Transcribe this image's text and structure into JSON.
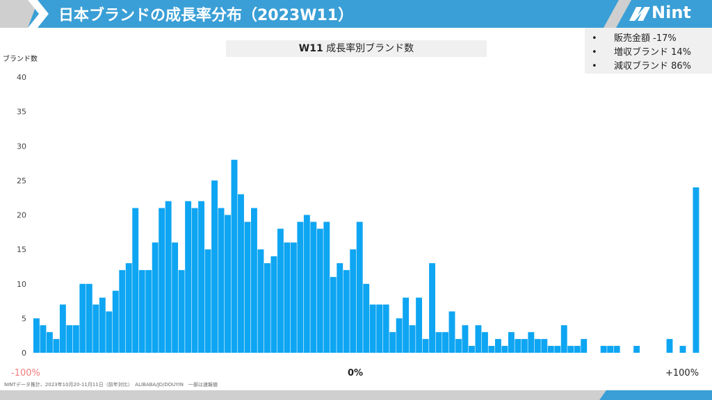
{
  "header": {
    "title": "日本ブランドの成長率分布（2023W11）",
    "logo": "Nint",
    "color_accent": "#3a9fd6"
  },
  "summary": {
    "items": [
      "販売金額 -17%",
      "増収ブランド 14%",
      "減収ブランド 86%"
    ]
  },
  "chart_title": {
    "bold": "W11",
    "rest": " 成長率別ブランド数"
  },
  "footer_note": "NINTデータ推計、2023年10月20-11月11日（前年対比）　ALIBABA/JD/DOUYIN　一部は速報値",
  "chart_data": {
    "type": "bar",
    "title": "W11 成長率別ブランド数",
    "ylabel": "ブランド数",
    "ylim": [
      0,
      40
    ],
    "yticks": [
      0,
      5,
      10,
      15,
      20,
      25,
      30,
      35,
      40
    ],
    "x_labels": [
      "-100%",
      "0%",
      "+100%"
    ],
    "x_label_colors": [
      "#f27c7c",
      "#222222",
      "#222222"
    ],
    "bar_color": "#0ea5f2",
    "grid": false,
    "values": [
      5,
      4,
      3,
      2,
      7,
      4,
      4,
      10,
      10,
      7,
      8,
      6,
      9,
      12,
      13,
      21,
      12,
      12,
      16,
      21,
      22,
      16,
      12,
      22,
      21,
      22,
      15,
      25,
      21,
      20,
      28,
      23,
      19,
      21,
      15,
      13,
      14,
      18,
      16,
      16,
      19,
      20,
      19,
      18,
      19,
      11,
      13,
      12,
      15,
      19,
      10,
      7,
      7,
      7,
      3,
      5,
      8,
      4,
      8,
      2,
      13,
      3,
      3,
      6,
      2,
      4,
      1,
      4,
      3,
      1,
      2,
      1,
      3,
      2,
      2,
      3,
      2,
      2,
      1,
      1,
      4,
      1,
      1,
      2,
      0,
      0,
      1,
      1,
      1,
      0,
      0,
      1,
      0,
      0,
      0,
      0,
      2,
      0,
      1,
      0,
      24
    ]
  }
}
